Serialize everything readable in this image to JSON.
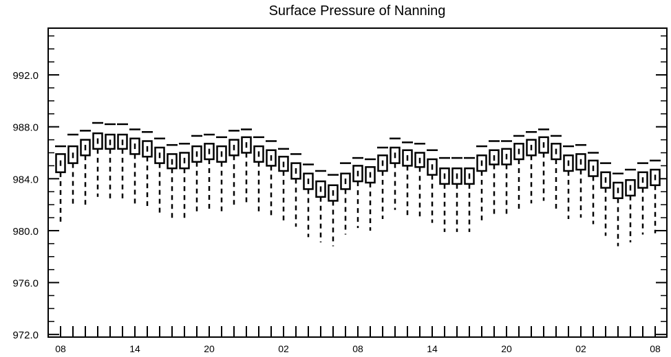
{
  "chart_data": {
    "type": "boxplot",
    "title": "Surface Pressure of Nanning",
    "xlabel": "",
    "ylabel": "",
    "ylim": [
      971.8,
      995.6
    ],
    "yticks": [
      972.0,
      976.0,
      980.0,
      984.0,
      988.0,
      992.0
    ],
    "ytick_labels": [
      "972.0",
      "976.0",
      "980.0",
      "984.0",
      "988.0",
      "992.0"
    ],
    "x_tick_labels": [
      "08",
      "14",
      "20",
      "02",
      "08",
      "14",
      "20",
      "02",
      "08"
    ],
    "x_label_interval_hours": 6,
    "time_step_hours": 1,
    "grid": false,
    "legend": "none",
    "series": [
      {
        "median": [
          985.2,
          985.8,
          986.4,
          986.9,
          986.8,
          986.8,
          986.5,
          986.3,
          985.8,
          985.3,
          985.4,
          985.9,
          986.1,
          985.9,
          986.4,
          986.6,
          985.9,
          985.6,
          985.1,
          984.6,
          983.8,
          983.2,
          982.9,
          983.8,
          984.4,
          984.3,
          985.2,
          985.8,
          985.6,
          985.4,
          984.9,
          984.2,
          984.2,
          984.2,
          985.2,
          985.6,
          985.7,
          986.1,
          986.4,
          986.6,
          986.1,
          985.2,
          985.3,
          984.8,
          983.9,
          983.1,
          983.3,
          983.9,
          984.1
        ],
        "q1": [
          984.5,
          985.2,
          985.8,
          986.3,
          986.3,
          986.3,
          985.9,
          985.7,
          985.2,
          984.8,
          984.8,
          985.3,
          985.5,
          985.3,
          985.8,
          986.0,
          985.3,
          985.0,
          984.6,
          984.0,
          983.2,
          982.6,
          982.3,
          983.2,
          983.8,
          983.7,
          984.6,
          985.2,
          985.0,
          984.9,
          984.3,
          983.6,
          983.6,
          983.6,
          984.6,
          985.1,
          985.1,
          985.5,
          985.8,
          986.0,
          985.5,
          984.6,
          984.7,
          984.2,
          983.3,
          982.5,
          982.7,
          983.3,
          983.5
        ],
        "q3": [
          985.9,
          986.5,
          987.0,
          987.5,
          987.4,
          987.4,
          987.1,
          986.9,
          986.4,
          985.9,
          986.0,
          986.5,
          986.7,
          986.5,
          987.0,
          987.2,
          986.5,
          986.2,
          985.7,
          985.2,
          984.4,
          983.8,
          983.5,
          984.4,
          985.0,
          984.9,
          985.8,
          986.4,
          986.2,
          986.0,
          985.5,
          984.8,
          984.8,
          984.8,
          985.8,
          986.2,
          986.3,
          986.7,
          987.0,
          987.2,
          986.7,
          985.8,
          985.9,
          985.4,
          984.5,
          983.7,
          983.9,
          984.5,
          984.7
        ],
        "whisker_low": [
          980.5,
          981.8,
          982.0,
          982.6,
          982.4,
          982.3,
          982.0,
          981.9,
          981.3,
          980.9,
          980.9,
          981.4,
          981.6,
          981.5,
          982.0,
          982.1,
          981.4,
          981.0,
          980.7,
          980.3,
          979.5,
          979.1,
          978.8,
          979.7,
          980.2,
          980.0,
          980.9,
          981.6,
          981.2,
          981.1,
          980.6,
          979.9,
          979.9,
          979.9,
          980.8,
          981.2,
          981.3,
          981.6,
          982.1,
          982.3,
          981.7,
          980.9,
          981.0,
          980.5,
          979.6,
          978.8,
          979.1,
          979.7,
          979.8
        ],
        "whisker_high": [
          986.5,
          987.4,
          987.7,
          988.3,
          988.2,
          988.2,
          987.8,
          987.6,
          987.1,
          986.6,
          986.7,
          987.3,
          987.4,
          987.2,
          987.7,
          987.8,
          987.2,
          986.9,
          986.3,
          985.9,
          985.1,
          984.6,
          984.3,
          985.2,
          985.6,
          985.5,
          986.4,
          987.1,
          986.8,
          986.7,
          986.2,
          985.6,
          985.6,
          985.6,
          986.5,
          986.9,
          986.9,
          987.3,
          987.6,
          987.8,
          987.3,
          986.5,
          986.6,
          986.0,
          985.2,
          984.4,
          984.7,
          985.2,
          985.4
        ]
      }
    ]
  }
}
